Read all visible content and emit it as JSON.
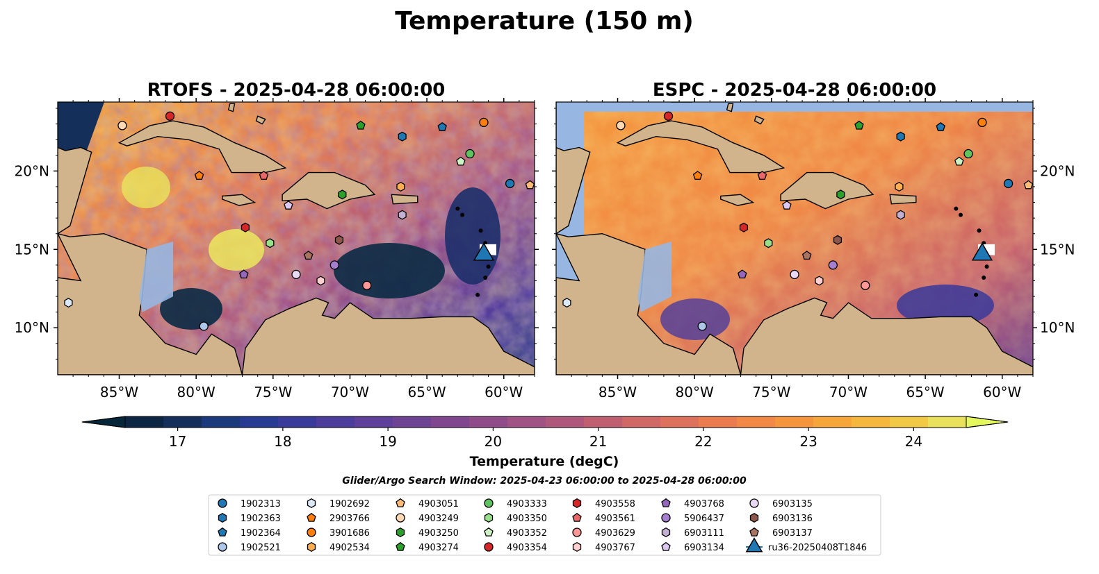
{
  "figure": {
    "title": "Temperature (150 m)"
  },
  "panels": [
    {
      "id": "rtofs",
      "title": "RTOFS - 2025-04-28 06:00:00"
    },
    {
      "id": "espc",
      "title": "ESPC - 2025-04-28 06:00:00"
    }
  ],
  "map": {
    "lon_range": [
      -89,
      -58
    ],
    "lat_range": [
      7,
      24.4
    ],
    "lon_ticks": [
      "85°W",
      "80°W",
      "75°W",
      "70°W",
      "65°W",
      "60°W"
    ],
    "lat_ticks": [
      "20°N",
      "15°N",
      "10°N"
    ],
    "land_color": "#d2b48c",
    "shelf_color": "#97b6e1",
    "deep_color": "#06273a"
  },
  "colorbar": {
    "label": "Temperature (degC)",
    "min": 16.5,
    "max": 24.5,
    "ticks": [
      "17",
      "18",
      "19",
      "20",
      "21",
      "22",
      "23",
      "24"
    ],
    "colors": [
      "#0c2641",
      "#132f5a",
      "#1b3a7b",
      "#283b93",
      "#3a3a9a",
      "#4c3c9c",
      "#5e3f99",
      "#6e4394",
      "#7f478e",
      "#8f4c88",
      "#a05282",
      "#b0587b",
      "#c15f72",
      "#d06868",
      "#de715c",
      "#ea7c4f",
      "#f28846",
      "#f5963f",
      "#f7a63c",
      "#f5b73d",
      "#f2c945",
      "#e9e05d"
    ],
    "extend_low": "#06273a",
    "extend_high": "#e4f75e"
  },
  "search_window": "Glider/Argo Search Window: 2025-04-23 06:00:00 to 2025-04-28 06:00:00",
  "legend": {
    "entries": [
      {
        "label": "1902313",
        "color": "#1f77b4",
        "marker": "circle"
      },
      {
        "label": "1902363",
        "color": "#1f77b4",
        "marker": "hexagon"
      },
      {
        "label": "1902364",
        "color": "#1f77b4",
        "marker": "pentagon"
      },
      {
        "label": "1902521",
        "color": "#aec7e8",
        "marker": "circle"
      },
      {
        "label": "1902692",
        "color": "#dbe9f8",
        "marker": "hexagon"
      },
      {
        "label": "2903766",
        "color": "#ff7f0e",
        "marker": "pentagon"
      },
      {
        "label": "3901686",
        "color": "#ff7f0e",
        "marker": "circle"
      },
      {
        "label": "4902534",
        "color": "#ffae50",
        "marker": "hexagon"
      },
      {
        "label": "4903051",
        "color": "#ffbb78",
        "marker": "pentagon"
      },
      {
        "label": "4903249",
        "color": "#ffd9b3",
        "marker": "circle"
      },
      {
        "label": "4903250",
        "color": "#2ca02c",
        "marker": "hexagon"
      },
      {
        "label": "4903274",
        "color": "#2ca02c",
        "marker": "pentagon"
      },
      {
        "label": "4903333",
        "color": "#5fc45f",
        "marker": "circle"
      },
      {
        "label": "4903350",
        "color": "#98df8a",
        "marker": "hexagon"
      },
      {
        "label": "4903352",
        "color": "#cdf3c4",
        "marker": "pentagon"
      },
      {
        "label": "4903354",
        "color": "#d62728",
        "marker": "circle"
      },
      {
        "label": "4903558",
        "color": "#d62728",
        "marker": "hexagon"
      },
      {
        "label": "4903561",
        "color": "#e8676b",
        "marker": "pentagon"
      },
      {
        "label": "4903629",
        "color": "#ff9896",
        "marker": "circle"
      },
      {
        "label": "4903767",
        "color": "#ffd0cf",
        "marker": "hexagon"
      },
      {
        "label": "4903768",
        "color": "#9467bd",
        "marker": "pentagon"
      },
      {
        "label": "5906437",
        "color": "#a77fd0",
        "marker": "circle"
      },
      {
        "label": "6903111",
        "color": "#c5b0d5",
        "marker": "hexagon"
      },
      {
        "label": "6903134",
        "color": "#dcc8f0",
        "marker": "pentagon"
      },
      {
        "label": "6903135",
        "color": "#ead9f5",
        "marker": "circle"
      },
      {
        "label": "6903136",
        "color": "#8c564b",
        "marker": "hexagon"
      },
      {
        "label": "6903137",
        "color": "#a8735f",
        "marker": "pentagon"
      },
      {
        "label": "ru36-20250408T1846",
        "color": "#1f77b4",
        "marker": "triangle"
      }
    ]
  },
  "chart_data": {
    "type": "scatter",
    "title": "Temperature (150 m)",
    "xlabel": "",
    "ylabel": "",
    "xlim": [
      -89,
      -58
    ],
    "ylim": [
      7,
      24.4
    ],
    "series": [
      {
        "name": "1902313",
        "points": [
          {
            "lon": -59.6,
            "lat": 19.2
          }
        ]
      },
      {
        "name": "1902363",
        "points": [
          {
            "lon": -66.6,
            "lat": 22.2
          }
        ]
      },
      {
        "name": "1902364",
        "points": [
          {
            "lon": -64.0,
            "lat": 22.8
          }
        ]
      },
      {
        "name": "1902521",
        "points": [
          {
            "lon": -79.5,
            "lat": 10.1
          }
        ]
      },
      {
        "name": "1902692",
        "points": [
          {
            "lon": -88.3,
            "lat": 11.6
          }
        ]
      },
      {
        "name": "2903766",
        "points": [
          {
            "lon": -79.8,
            "lat": 19.7
          }
        ]
      },
      {
        "name": "3901686",
        "points": [
          {
            "lon": -61.3,
            "lat": 23.1
          }
        ]
      },
      {
        "name": "4902534",
        "points": [
          {
            "lon": -66.7,
            "lat": 19.0
          }
        ]
      },
      {
        "name": "4903051",
        "points": [
          {
            "lon": -58.3,
            "lat": 19.1
          }
        ]
      },
      {
        "name": "4903249",
        "points": [
          {
            "lon": -84.8,
            "lat": 22.9
          }
        ]
      },
      {
        "name": "4903250",
        "points": [
          {
            "lon": -70.5,
            "lat": 18.5
          }
        ]
      },
      {
        "name": "4903274",
        "points": [
          {
            "lon": -69.3,
            "lat": 22.9
          }
        ]
      },
      {
        "name": "4903333",
        "points": [
          {
            "lon": -62.2,
            "lat": 21.1
          }
        ]
      },
      {
        "name": "4903350",
        "points": [
          {
            "lon": -75.2,
            "lat": 15.4
          }
        ]
      },
      {
        "name": "4903352",
        "points": [
          {
            "lon": -62.8,
            "lat": 20.6
          }
        ]
      },
      {
        "name": "4903354",
        "points": [
          {
            "lon": -81.7,
            "lat": 23.5
          }
        ]
      },
      {
        "name": "4903558",
        "points": [
          {
            "lon": -76.8,
            "lat": 16.4
          }
        ]
      },
      {
        "name": "4903561",
        "points": [
          {
            "lon": -75.6,
            "lat": 19.7
          }
        ]
      },
      {
        "name": "4903629",
        "points": [
          {
            "lon": -68.9,
            "lat": 12.7
          }
        ]
      },
      {
        "name": "4903767",
        "points": [
          {
            "lon": -71.9,
            "lat": 13.0
          }
        ]
      },
      {
        "name": "4903768",
        "points": [
          {
            "lon": -76.9,
            "lat": 13.4
          }
        ]
      },
      {
        "name": "5906437",
        "points": [
          {
            "lon": -71.0,
            "lat": 14.0
          }
        ]
      },
      {
        "name": "6903111",
        "points": [
          {
            "lon": -66.6,
            "lat": 17.2
          }
        ]
      },
      {
        "name": "6903134",
        "points": [
          {
            "lon": -74.0,
            "lat": 17.8
          }
        ]
      },
      {
        "name": "6903135",
        "points": [
          {
            "lon": -73.5,
            "lat": 13.4
          }
        ]
      },
      {
        "name": "6903136",
        "points": [
          {
            "lon": -70.7,
            "lat": 15.6
          }
        ]
      },
      {
        "name": "6903137",
        "points": [
          {
            "lon": -72.7,
            "lat": 14.6
          }
        ]
      },
      {
        "name": "ru36-20250408T1846",
        "points": [
          {
            "lon": -61.3,
            "lat": 14.8
          }
        ]
      }
    ]
  }
}
